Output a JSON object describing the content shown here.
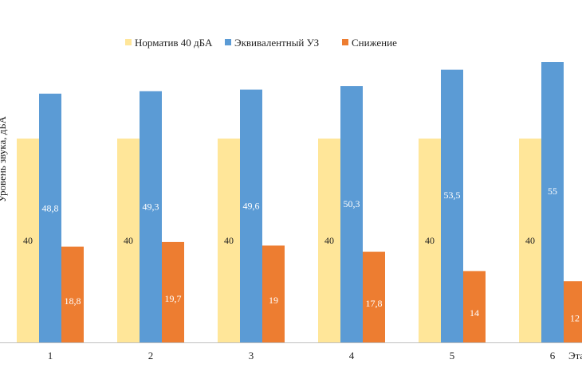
{
  "chart_data": {
    "type": "bar",
    "categories": [
      "1",
      "2",
      "3",
      "4",
      "5",
      "6"
    ],
    "series": [
      {
        "name": "Норматив 40 дБА",
        "color": "#FFE699",
        "values": [
          40,
          40,
          40,
          40,
          40,
          40
        ]
      },
      {
        "name": "Эквивалентный УЗ",
        "color": "#5B9BD5",
        "values": [
          48.8,
          49.3,
          49.6,
          50.3,
          53.5,
          55
        ]
      },
      {
        "name": "Снижение",
        "color": "#ED7D31",
        "values": [
          18.8,
          19.7,
          19,
          17.8,
          14,
          12
        ]
      }
    ],
    "data_labels": [
      [
        "40",
        "40",
        "40",
        "40",
        "40",
        "40"
      ],
      [
        "48,8",
        "49,3",
        "49,6",
        "50,3",
        "53,5",
        "55"
      ],
      [
        "18,8",
        "19,7",
        "19",
        "17,8",
        "14",
        "12"
      ]
    ],
    "ylabel": "Уровень звука, дБА",
    "xlabel": "Этап",
    "ylim": [
      0,
      55
    ],
    "grid": false,
    "legend_position": "top-center"
  }
}
